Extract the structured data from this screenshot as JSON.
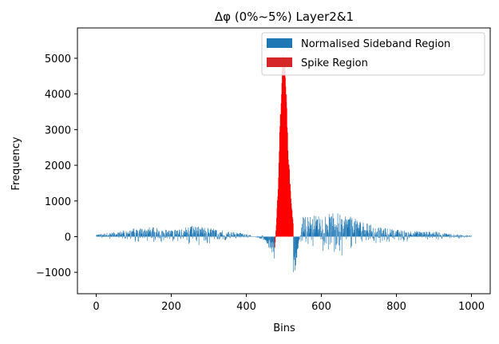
{
  "chart_data": {
    "type": "bar",
    "title": "Δφ (0%~5%) Layer2&1",
    "xlabel": "Bins",
    "ylabel": "Frequency",
    "xlim": [
      -50,
      1050
    ],
    "ylim": [
      -1600,
      5850
    ],
    "xticks": [
      0,
      200,
      400,
      600,
      800,
      1000
    ],
    "yticks": [
      -1000,
      0,
      1000,
      2000,
      3000,
      4000,
      5000
    ],
    "xtick_labels": [
      "0",
      "200",
      "400",
      "600",
      "800",
      "1000"
    ],
    "ytick_labels": [
      "−1000",
      "0",
      "1000",
      "2000",
      "3000",
      "4000",
      "5000"
    ],
    "grid": false,
    "legend_position": "top-right",
    "series": [
      {
        "name": "Normalised Sideband Region",
        "color": "#1f77b4",
        "bin_range": [
          0,
          1000
        ],
        "excluded_range": [
          475,
          525
        ],
        "envelope": [
          [
            0,
            60
          ],
          [
            50,
            120
          ],
          [
            100,
            220
          ],
          [
            150,
            240
          ],
          [
            200,
            160
          ],
          [
            250,
            280
          ],
          [
            300,
            230
          ],
          [
            350,
            140
          ],
          [
            400,
            80
          ],
          [
            450,
            -120
          ],
          [
            470,
            -450
          ],
          [
            475,
            -600
          ],
          [
            525,
            -1050
          ],
          [
            530,
            -800
          ],
          [
            550,
            520
          ],
          [
            600,
            560
          ],
          [
            650,
            620
          ],
          [
            700,
            420
          ],
          [
            750,
            240
          ],
          [
            800,
            180
          ],
          [
            850,
            140
          ],
          [
            900,
            130
          ],
          [
            950,
            70
          ],
          [
            1000,
            30
          ]
        ]
      },
      {
        "name": "Spike Region",
        "color": "#ff0000",
        "bin_range": [
          475,
          525
        ],
        "profile": [
          [
            475,
            -400
          ],
          [
            480,
            400
          ],
          [
            485,
            1600
          ],
          [
            490,
            3300
          ],
          [
            495,
            4700
          ],
          [
            500,
            5300
          ],
          [
            505,
            4300
          ],
          [
            510,
            2700
          ],
          [
            515,
            1700
          ],
          [
            520,
            900
          ],
          [
            525,
            300
          ]
        ]
      }
    ]
  }
}
